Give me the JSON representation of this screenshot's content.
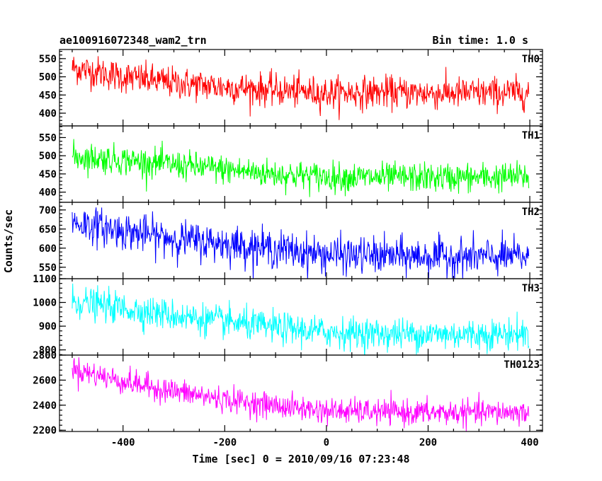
{
  "title_left": "ae100916072348_wam2_trn",
  "title_right": "Bin time: 1.0 s",
  "chart_data": {
    "type": "line",
    "ylabel": "Counts/sec",
    "xlabel": "Time [sec] 0 = 2010/09/16 07:23:48",
    "xlim": [
      -525,
      425
    ],
    "x_ticks": [
      -400,
      -200,
      0,
      200,
      400
    ],
    "x_start": -500,
    "x_end": 398,
    "x_step": 1,
    "grid": false,
    "panels": [
      {
        "label": "TH0",
        "color": "#ff0000",
        "ylim": [
          365,
          575
        ],
        "y_ticks": [
          400,
          450,
          500,
          550
        ],
        "trend": [
          [
            -500,
            525
          ],
          [
            -400,
            500
          ],
          [
            -300,
            483
          ],
          [
            -200,
            472
          ],
          [
            -100,
            463
          ],
          [
            0,
            455
          ],
          [
            100,
            458
          ],
          [
            200,
            455
          ],
          [
            300,
            455
          ],
          [
            398,
            457
          ]
        ],
        "noise": 22
      },
      {
        "label": "TH1",
        "color": "#00ff00",
        "ylim": [
          372,
          582
        ],
        "y_ticks": [
          400,
          450,
          500,
          550
        ],
        "trend": [
          [
            -500,
            498
          ],
          [
            -400,
            488
          ],
          [
            -300,
            475
          ],
          [
            -200,
            462
          ],
          [
            -100,
            450
          ],
          [
            0,
            442
          ],
          [
            100,
            440
          ],
          [
            200,
            440
          ],
          [
            300,
            440
          ],
          [
            398,
            443
          ]
        ],
        "noise": 20
      },
      {
        "label": "TH2",
        "color": "#0000ff",
        "ylim": [
          520,
          720
        ],
        "y_ticks": [
          550,
          600,
          650,
          700
        ],
        "trend": [
          [
            -500,
            668
          ],
          [
            -400,
            645
          ],
          [
            -300,
            625
          ],
          [
            -200,
            612
          ],
          [
            -100,
            598
          ],
          [
            0,
            583
          ],
          [
            100,
            580
          ],
          [
            200,
            578
          ],
          [
            300,
            577
          ],
          [
            398,
            578
          ]
        ],
        "noise": 24
      },
      {
        "label": "TH3",
        "color": "#00ffff",
        "ylim": [
          778,
          1100
        ],
        "y_ticks": [
          800,
          900,
          1000,
          1100
        ],
        "trend": [
          [
            -500,
            1005
          ],
          [
            -400,
            975
          ],
          [
            -300,
            945
          ],
          [
            -200,
            918
          ],
          [
            -100,
            893
          ],
          [
            0,
            875
          ],
          [
            100,
            868
          ],
          [
            200,
            866
          ],
          [
            300,
            866
          ],
          [
            398,
            868
          ]
        ],
        "noise": 33
      },
      {
        "label": "TH0123",
        "color": "#ff00ff",
        "ylim": [
          2190,
          2800
        ],
        "y_ticks": [
          2200,
          2400,
          2600,
          2800
        ],
        "trend": [
          [
            -500,
            2690
          ],
          [
            -400,
            2590
          ],
          [
            -300,
            2510
          ],
          [
            -200,
            2445
          ],
          [
            -100,
            2395
          ],
          [
            0,
            2355
          ],
          [
            100,
            2345
          ],
          [
            200,
            2340
          ],
          [
            300,
            2340
          ],
          [
            398,
            2345
          ]
        ],
        "noise": 50
      }
    ]
  }
}
